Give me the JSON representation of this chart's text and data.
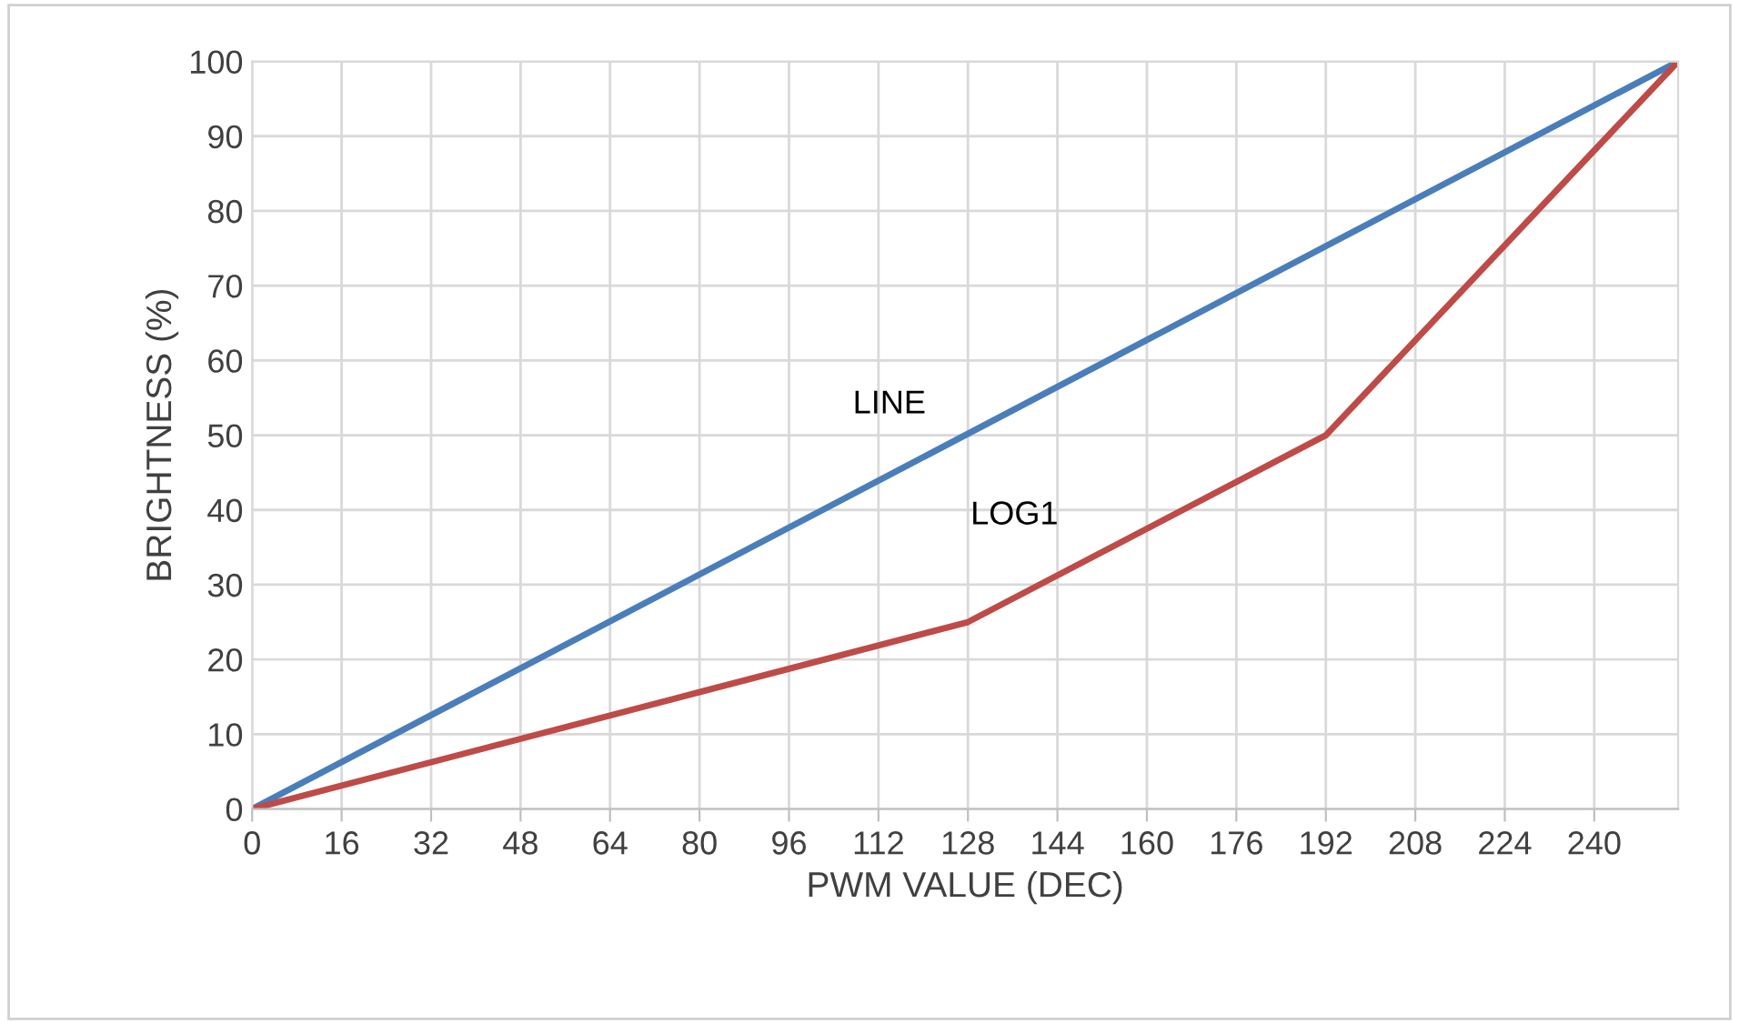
{
  "chart_data": {
    "type": "line",
    "xlabel": "PWM VALUE (DEC)",
    "ylabel": "BRIGHTNESS (%)",
    "xlim": [
      0,
      255
    ],
    "xticks": [
      0,
      16,
      32,
      48,
      64,
      80,
      96,
      112,
      128,
      144,
      160,
      176,
      192,
      208,
      224,
      240
    ],
    "ylim": [
      0,
      100
    ],
    "yticks": [
      0,
      10,
      20,
      30,
      40,
      50,
      60,
      70,
      80,
      90,
      100
    ],
    "grid": true,
    "marker": "none",
    "line_style": "solid",
    "series": [
      {
        "name": "LINE",
        "color": "#4a7ebb",
        "x": [
          0,
          255
        ],
        "values": [
          0,
          100
        ]
      },
      {
        "name": "LOG1",
        "color": "#be4b48",
        "x": [
          0,
          128,
          192,
          255
        ],
        "values": [
          0,
          25,
          50,
          100
        ]
      }
    ]
  }
}
